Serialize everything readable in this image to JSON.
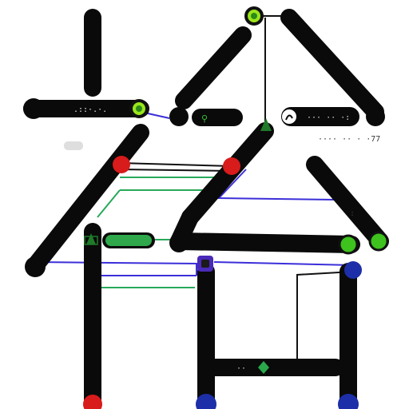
{
  "diagram": {
    "colors": {
      "track": "#0a0a0a",
      "thin_line": "#111111",
      "blue_line": "#3b2fd9",
      "green_line": "#28a85a",
      "red_node": "#d81b1b",
      "green_node": "#3ec21e",
      "lime_node": "#9ae61c",
      "blue_node": "#1d2fa8",
      "grey_chip": "#d9d9d9"
    },
    "labels": {
      "top_left": ".::·.·.",
      "top_center": "⚲",
      "top_right": "··· ·· ·:",
      "right_side": "···· ·· · ·77",
      "small_right": ":"
    }
  }
}
